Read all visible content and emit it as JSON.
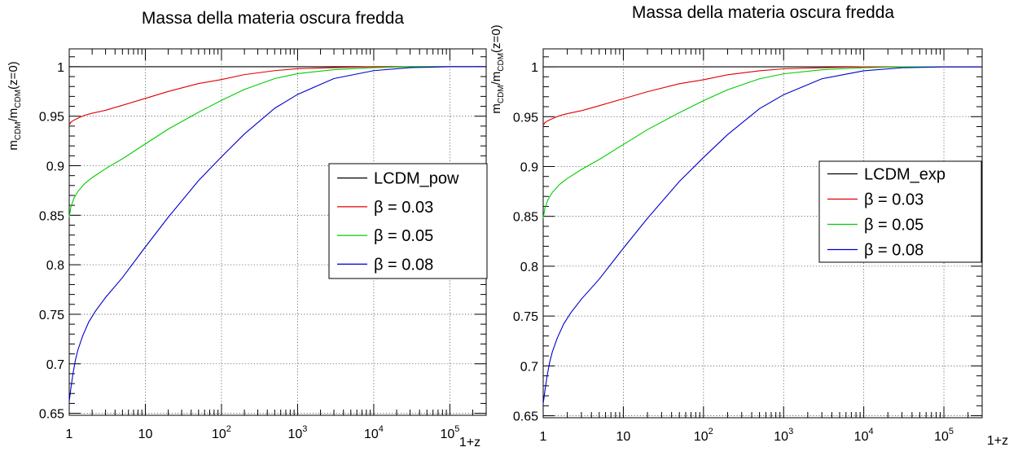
{
  "chart_data": [
    {
      "type": "line",
      "title": "Massa della materia oscura fredda",
      "xlabel": "1+z",
      "ylabel": "m_CDM/m_CDM(z=0)",
      "xscale": "log",
      "xlim": [
        1,
        300000
      ],
      "ylim": [
        0.648,
        1.018
      ],
      "grid": true,
      "legend_position": "right",
      "x_tick_labels": [
        {
          "value": 1,
          "base": "1",
          "exp": ""
        },
        {
          "value": 10,
          "base": "10",
          "exp": ""
        },
        {
          "value": 100,
          "base": "10",
          "exp": "2"
        },
        {
          "value": 1000,
          "base": "10",
          "exp": "3"
        },
        {
          "value": 10000,
          "base": "10",
          "exp": "4"
        },
        {
          "value": 100000,
          "base": "10",
          "exp": "5"
        }
      ],
      "y_tick_labels": [
        "0.65",
        "0.7",
        "0.75",
        "0.8",
        "0.85",
        "0.9",
        "0.95",
        "1"
      ],
      "y_ticks": [
        0.65,
        0.7,
        0.75,
        0.8,
        0.85,
        0.9,
        0.95,
        1.0
      ],
      "series": [
        {
          "name": "LCDM_pow",
          "color": "#000000",
          "x": [
            1,
            300000
          ],
          "y": [
            1.0,
            1.0
          ]
        },
        {
          "name": "β = 0.03",
          "color": "#e00000",
          "x": [
            1,
            1.05,
            1.15,
            1.3,
            1.6,
            2,
            3,
            5,
            10,
            20,
            50,
            100,
            200,
            500,
            1000,
            3000,
            10000,
            30000,
            100000,
            300000
          ],
          "y": [
            0.941,
            0.944,
            0.946,
            0.948,
            0.951,
            0.953,
            0.956,
            0.961,
            0.968,
            0.975,
            0.983,
            0.987,
            0.992,
            0.996,
            0.998,
            0.999,
            1.0,
            1.0,
            1.0,
            1.0
          ]
        },
        {
          "name": "β = 0.05",
          "color": "#00cc00",
          "x": [
            1,
            1.05,
            1.15,
            1.3,
            1.6,
            2,
            3,
            5,
            10,
            20,
            50,
            100,
            200,
            500,
            1000,
            3000,
            10000,
            30000,
            100000,
            300000
          ],
          "y": [
            0.848,
            0.858,
            0.867,
            0.874,
            0.882,
            0.888,
            0.897,
            0.907,
            0.922,
            0.937,
            0.954,
            0.966,
            0.977,
            0.988,
            0.993,
            0.997,
            0.999,
            1.0,
            1.0,
            1.0
          ]
        },
        {
          "name": "β = 0.08",
          "color": "#0000cc",
          "x": [
            1,
            1.05,
            1.12,
            1.2,
            1.3,
            1.5,
            1.8,
            2.2,
            3,
            5,
            10,
            20,
            50,
            100,
            200,
            500,
            1000,
            3000,
            10000,
            30000,
            100000,
            300000
          ],
          "y": [
            0.662,
            0.675,
            0.69,
            0.703,
            0.714,
            0.728,
            0.742,
            0.753,
            0.767,
            0.787,
            0.818,
            0.848,
            0.885,
            0.909,
            0.932,
            0.958,
            0.972,
            0.988,
            0.996,
            0.999,
            1.0,
            1.0
          ]
        }
      ]
    },
    {
      "type": "line",
      "title": "Massa della materia oscura fredda",
      "xlabel": "1+z",
      "ylabel": "m_CDM/m_CDM(z=0)",
      "xscale": "log",
      "xlim": [
        1,
        300000
      ],
      "ylim": [
        0.648,
        1.018
      ],
      "grid": true,
      "legend_position": "right",
      "x_tick_labels": [
        {
          "value": 1,
          "base": "1",
          "exp": ""
        },
        {
          "value": 10,
          "base": "10",
          "exp": ""
        },
        {
          "value": 100,
          "base": "10",
          "exp": "2"
        },
        {
          "value": 1000,
          "base": "10",
          "exp": "3"
        },
        {
          "value": 10000,
          "base": "10",
          "exp": "4"
        },
        {
          "value": 100000,
          "base": "10",
          "exp": "5"
        }
      ],
      "y_tick_labels": [
        "0.65",
        "0.7",
        "0.75",
        "0.8",
        "0.85",
        "0.9",
        "0.95",
        "1"
      ],
      "y_ticks": [
        0.65,
        0.7,
        0.75,
        0.8,
        0.85,
        0.9,
        0.95,
        1.0
      ],
      "series": [
        {
          "name": "LCDM_exp",
          "color": "#000000",
          "x": [
            1,
            300000
          ],
          "y": [
            1.0,
            1.0
          ]
        },
        {
          "name": "β = 0.03",
          "color": "#e00000",
          "x": [
            1,
            1.05,
            1.15,
            1.3,
            1.6,
            2,
            3,
            5,
            10,
            20,
            50,
            100,
            200,
            500,
            1000,
            3000,
            10000,
            30000,
            100000,
            300000
          ],
          "y": [
            0.941,
            0.944,
            0.946,
            0.948,
            0.951,
            0.953,
            0.956,
            0.961,
            0.968,
            0.975,
            0.983,
            0.987,
            0.992,
            0.996,
            0.998,
            0.999,
            1.0,
            1.0,
            1.0,
            1.0
          ]
        },
        {
          "name": "β = 0.05",
          "color": "#00cc00",
          "x": [
            1,
            1.05,
            1.15,
            1.3,
            1.6,
            2,
            3,
            5,
            10,
            20,
            50,
            100,
            200,
            500,
            1000,
            3000,
            10000,
            30000,
            100000,
            300000
          ],
          "y": [
            0.848,
            0.858,
            0.867,
            0.874,
            0.882,
            0.888,
            0.897,
            0.907,
            0.922,
            0.937,
            0.954,
            0.966,
            0.977,
            0.988,
            0.993,
            0.997,
            0.999,
            1.0,
            1.0,
            1.0
          ]
        },
        {
          "name": "β = 0.08",
          "color": "#0000cc",
          "x": [
            1,
            1.05,
            1.12,
            1.2,
            1.3,
            1.5,
            1.8,
            2.2,
            3,
            5,
            10,
            20,
            50,
            100,
            200,
            500,
            1000,
            3000,
            10000,
            30000,
            100000,
            300000
          ],
          "y": [
            0.662,
            0.675,
            0.69,
            0.703,
            0.714,
            0.728,
            0.742,
            0.753,
            0.767,
            0.787,
            0.818,
            0.848,
            0.885,
            0.909,
            0.932,
            0.958,
            0.972,
            0.988,
            0.996,
            0.999,
            1.0,
            1.0
          ]
        }
      ]
    }
  ]
}
